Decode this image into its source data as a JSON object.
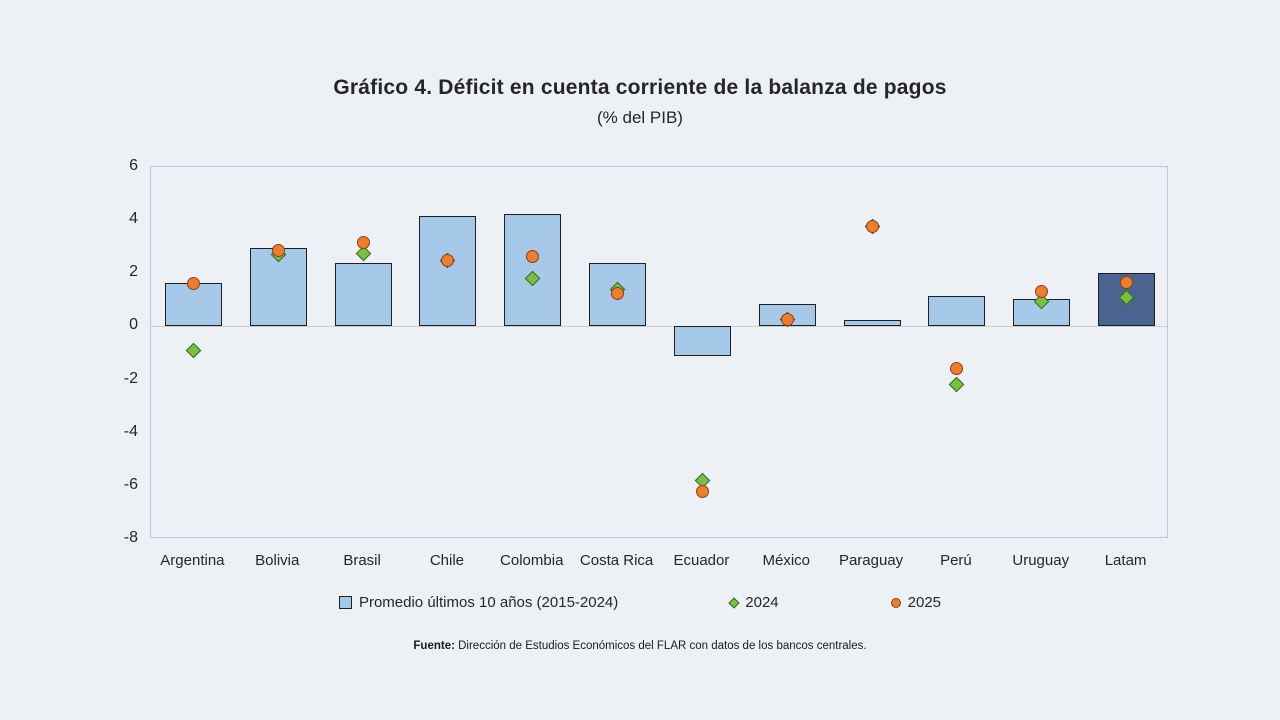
{
  "page": {
    "background": "#EDF1F5"
  },
  "header": {
    "title": "Gráfico 4. Déficit en cuenta corriente de la balanza de pagos",
    "subtitle": "(% del PIB)"
  },
  "source": {
    "label": "Fuente:",
    "text": " Dirección de Estudios Económicos del FLAR con datos de los bancos centrales."
  },
  "colors": {
    "background": "#EDF1F5",
    "bar_fill": "#A6C9EA",
    "bar_border": "#1F1F1F",
    "bar_highlight": "#4A6491",
    "marker_2024_fill": "#77C044",
    "marker_2024_border": "#3A661C",
    "marker_2025_fill": "#ED7D31",
    "marker_2025_border": "#8A4012",
    "plot_border": "#C0C8D0",
    "zero_line": "#C8CDD2",
    "text": "#262626"
  },
  "chart_data": {
    "type": "bar",
    "title": "Gráfico 4. Déficit en cuenta corriente de la balanza de pagos",
    "subtitle": "(% del PIB)",
    "categories": [
      "Argentina",
      "Bolivia",
      "Brasil",
      "Chile",
      "Colombia",
      "Costa Rica",
      "Ecuador",
      "México",
      "Paraguay",
      "Perú",
      "Uruguay",
      "Latam"
    ],
    "series": [
      {
        "name": "Promedio últimos 10 años (2015-2024)",
        "type": "bar",
        "values": [
          1.65,
          2.95,
          2.4,
          4.15,
          4.25,
          2.4,
          -1.1,
          0.85,
          0.25,
          1.15,
          1.05,
          2.0
        ]
      },
      {
        "name": "2024",
        "type": "scatter",
        "marker": "diamond",
        "values": [
          -0.9,
          2.7,
          2.75,
          2.5,
          1.8,
          1.4,
          -5.8,
          0.25,
          3.75,
          -2.2,
          0.95,
          1.1
        ]
      },
      {
        "name": "2025",
        "type": "scatter",
        "marker": "circle",
        "values": [
          1.6,
          2.85,
          3.15,
          2.5,
          2.65,
          1.25,
          -6.2,
          0.25,
          3.75,
          -1.6,
          1.3,
          1.65
        ]
      }
    ],
    "ylim": [
      -8,
      6
    ],
    "yticks": [
      6,
      4,
      2,
      0,
      -2,
      -4,
      -6,
      -8
    ],
    "xlabel": "",
    "ylabel": "",
    "grid": false,
    "legend_position": "bottom",
    "highlight_category": "Latam"
  }
}
